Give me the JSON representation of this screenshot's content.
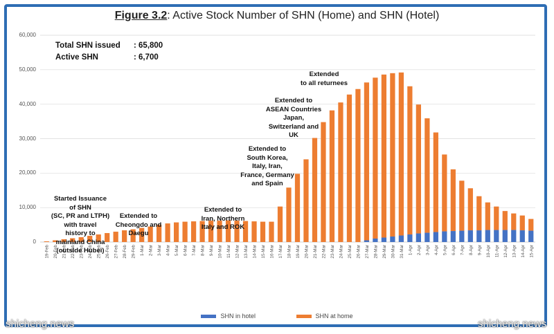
{
  "figure": {
    "number_label": "Figure 3.2",
    "title_rest": ": Active Stock Number of SHN (Home) and SHN (Hotel)"
  },
  "summary": {
    "total_label": "Total SHN issued",
    "total_value": ": 65,800",
    "active_label": "Active SHN",
    "active_value": ": 6,700"
  },
  "annotations": [
    {
      "id": "a1",
      "lines": [
        "Started Issuance",
        "of SHN",
        "(SC, PR and LTPH)",
        "with travel",
        "history to",
        "mainland China",
        "(outside Hubei)"
      ]
    },
    {
      "id": "a2",
      "lines": [
        "Extended to",
        "Cheongdo and",
        "Daegu"
      ]
    },
    {
      "id": "a3",
      "lines": [
        "Extended to",
        "Iran, Northern",
        "Italy and ROK"
      ]
    },
    {
      "id": "a4",
      "lines": [
        "Extended to",
        "South Korea,",
        "Italy, Iran,",
        "France, Germany",
        "and Spain"
      ]
    },
    {
      "id": "a5",
      "lines": [
        "Extended to",
        "ASEAN Countries",
        "Japan,",
        "Switzerland and",
        "UK"
      ]
    },
    {
      "id": "a6",
      "lines": [
        "Extended",
        "to all returnees"
      ]
    }
  ],
  "watermarks": {
    "left": "shicheng.news",
    "right": "shicheng.news"
  },
  "colors": {
    "hotel": "#4472c4",
    "home": "#ed7d31",
    "border": "#2e6db4",
    "grid": "#d9d9d9"
  },
  "chart_data": {
    "type": "bar",
    "stacked": true,
    "ylim": [
      0,
      60000
    ],
    "yticks": [
      "0",
      "10,000",
      "20,000",
      "30,000",
      "40,000",
      "50,000",
      "60,000"
    ],
    "grid": true,
    "legend_position": "bottom",
    "categories": [
      "19-Feb",
      "20-Feb",
      "21-Feb",
      "22-Feb",
      "23-Feb",
      "24-Feb",
      "25-Feb",
      "26-Feb",
      "27-Feb",
      "28-Feb",
      "29-Feb",
      "1-Mar",
      "2-Mar",
      "3-Mar",
      "4-Mar",
      "5-Mar",
      "6-Mar",
      "7-Mar",
      "8-Mar",
      "9-Mar",
      "10-Mar",
      "11-Mar",
      "12-Mar",
      "13-Mar",
      "14-Mar",
      "15-Mar",
      "16-Mar",
      "17-Mar",
      "18-Mar",
      "19-Mar",
      "20-Mar",
      "21-Mar",
      "22-Mar",
      "23-Mar",
      "24-Mar",
      "25-Mar",
      "26-Mar",
      "27-Mar",
      "28-Mar",
      "29-Mar",
      "30-Mar",
      "31-Mar",
      "1-Apr",
      "2-Apr",
      "3-Apr",
      "4-Apr",
      "5-Apr",
      "6-Apr",
      "7-Apr",
      "8-Apr",
      "9-Apr",
      "10-Apr",
      "11-Apr",
      "12-Apr",
      "13-Apr",
      "14-Apr",
      "15-Apr"
    ],
    "series": [
      {
        "name": "SHN in hotel",
        "values": [
          0,
          0,
          0,
          0,
          0,
          0,
          0,
          0,
          0,
          0,
          0,
          0,
          0,
          0,
          0,
          0,
          0,
          0,
          0,
          0,
          0,
          0,
          0,
          0,
          0,
          0,
          0,
          0,
          0,
          0,
          0,
          0,
          0,
          0,
          0,
          0,
          0,
          500,
          1000,
          1300,
          1600,
          1900,
          2200,
          2500,
          2700,
          2900,
          3100,
          3200,
          3300,
          3400,
          3400,
          3500,
          3500,
          3500,
          3500,
          3400,
          3300
        ]
      },
      {
        "name": "SHN at home",
        "values": [
          200,
          500,
          800,
          1100,
          1400,
          1800,
          2200,
          2600,
          3000,
          3400,
          3700,
          4100,
          4500,
          5000,
          5400,
          5700,
          5900,
          6000,
          6100,
          6200,
          6200,
          6300,
          6200,
          6100,
          6000,
          5900,
          5900,
          10300,
          15800,
          19800,
          24000,
          30200,
          34800,
          38200,
          40500,
          42800,
          44400,
          45800,
          46700,
          47300,
          47400,
          47300,
          43000,
          37400,
          33200,
          28900,
          22300,
          17900,
          14500,
          12200,
          9900,
          8000,
          6800,
          5500,
          4800,
          4300,
          3400
        ]
      }
    ]
  }
}
